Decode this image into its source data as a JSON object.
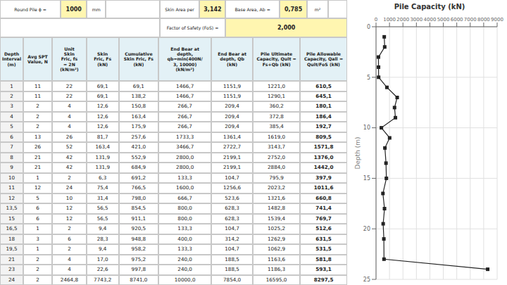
{
  "chart_data": [
    {
      "type": "table",
      "annotations": [
        "Round Pile ϕ =",
        "1000",
        "mm",
        "Skin Area per",
        "3,142",
        "Base Area, Ab =",
        "0,785",
        "m²",
        "Factor of Safety (FoS) =",
        "2,000"
      ],
      "columns": [
        "Depth\nInterval (m)",
        "Avg SPT\nValue, N",
        "Unit\nSkin\nFric, fs\n= 2N\n(kN/m²)",
        "Skin\nFric, Fs\n(kN)",
        "Cumulative\nSkin Fric, Fs\n(kN)",
        "End Bear at\ndepth,\nqb=min(400N/\n3, 10000)\n(kN/m²)",
        "End Bear at\ndepth, Qb\n(kN)",
        "Pile Ultimate\nCapacity, Qult =\nFs+Qb (kN)",
        "Pile Allowable\nCapacity, Qall =\nQult/FoS (kN)"
      ],
      "rows": [
        [
          "1",
          "11",
          "22",
          "69,1",
          "69,1",
          "1466,7",
          "1151,9",
          "1221,0",
          "610,5"
        ],
        [
          "2",
          "11",
          "22",
          "69,1",
          "138,2",
          "1466,7",
          "1151,9",
          "1290,1",
          "645,1"
        ],
        [
          "3",
          "2",
          "4",
          "12,6",
          "150,8",
          "266,7",
          "209,4",
          "360,2",
          "180,1"
        ],
        [
          "4",
          "2",
          "4",
          "12,6",
          "163,4",
          "266,7",
          "209,4",
          "372,8",
          "186,4"
        ],
        [
          "5",
          "2",
          "4",
          "12,6",
          "175,9",
          "266,7",
          "209,4",
          "385,4",
          "192,7"
        ],
        [
          "6",
          "13",
          "26",
          "81,7",
          "257,6",
          "1733,3",
          "1361,4",
          "1619,0",
          "809,5"
        ],
        [
          "7",
          "26",
          "52",
          "163,4",
          "421,0",
          "3466,7",
          "2722,7",
          "3143,7",
          "1571,8"
        ],
        [
          "8",
          "21",
          "42",
          "131,9",
          "552,9",
          "2800,0",
          "2199,1",
          "2752,0",
          "1376,0"
        ],
        [
          "9",
          "21",
          "42",
          "131,9",
          "684,9",
          "2800,0",
          "2199,1",
          "2884,0",
          "1442,0"
        ],
        [
          "10",
          "1",
          "2",
          "6,3",
          "691,2",
          "133,3",
          "104,7",
          "795,9",
          "397,9"
        ],
        [
          "11",
          "12",
          "24",
          "75,4",
          "766,5",
          "1600,0",
          "1256,6",
          "2023,2",
          "1011,6"
        ],
        [
          "12",
          "5",
          "10",
          "31,4",
          "798,0",
          "666,7",
          "523,6",
          "1321,6",
          "660,8"
        ],
        [
          "13,5",
          "6",
          "12",
          "56,5",
          "854,5",
          "800,0",
          "628,3",
          "1482,8",
          "741,4"
        ],
        [
          "15",
          "6",
          "12",
          "56,5",
          "911,1",
          "800,0",
          "628,3",
          "1539,4",
          "769,7"
        ],
        [
          "16,5",
          "1",
          "2",
          "9,4",
          "920,5",
          "133,3",
          "104,7",
          "1025,2",
          "512,6"
        ],
        [
          "18",
          "3",
          "6",
          "28,3",
          "948,8",
          "400,0",
          "314,2",
          "1262,9",
          "631,5"
        ],
        [
          "19,5",
          "1",
          "2",
          "9,4",
          "958,2",
          "133,3",
          "104,7",
          "1062,9",
          "531,5"
        ],
        [
          "21",
          "2",
          "4",
          "17,0",
          "975,2",
          "240,0",
          "188,5",
          "1163,6",
          "581,8"
        ],
        [
          "23",
          "2",
          "4",
          "22,6",
          "997,8",
          "240,0",
          "188,5",
          "1186,3",
          "593,1"
        ],
        [
          "24",
          "2",
          "2464,8",
          "7743,2",
          "8741,0",
          "10000,0",
          "7854,0",
          "16595,0",
          "8297,5"
        ]
      ]
    },
    {
      "type": "line",
      "title": "Pile Capacity (kN)",
      "y_label": "Depth (m)",
      "x": [
        610.5,
        645.1,
        180.1,
        186.4,
        192.7,
        809.5,
        1571.8,
        1376.0,
        1442.0,
        397.9,
        1011.6,
        660.8,
        741.4,
        769.7,
        512.6,
        631.5,
        531.5,
        581.8,
        593.1,
        8297.5
      ],
      "values": [
        1,
        2,
        3,
        4,
        5,
        6,
        7,
        8,
        9,
        10,
        11,
        12,
        13.5,
        15,
        16.5,
        18,
        19.5,
        21,
        23,
        24
      ],
      "xlim": [
        0,
        9000
      ],
      "xticks": [
        0,
        1000,
        2000,
        3000,
        4000,
        5000,
        6000,
        7000,
        8000,
        9000
      ],
      "ylim": [
        25,
        0
      ],
      "yticks": [
        0,
        5,
        10,
        15,
        20,
        25
      ],
      "grid": true,
      "color": "#222222",
      "marker": "square"
    }
  ]
}
